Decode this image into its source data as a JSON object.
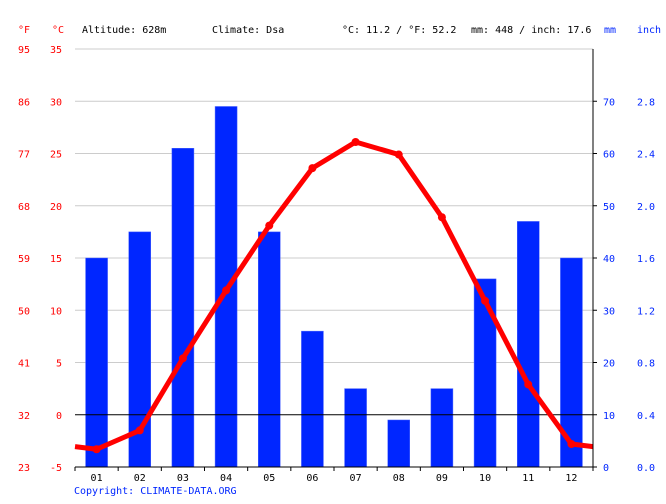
{
  "header": {
    "unit_f": "°F",
    "unit_c": "°C",
    "altitude": "Altitude: 628m",
    "climate": "Climate: Dsa",
    "temp_avg": "°C: 11.2 / °F: 52.2",
    "precip_total": "mm: 448 / inch: 17.6",
    "unit_mm": "mm",
    "unit_inch": "inch"
  },
  "copyright": "Copyright: CLIMATE-DATA.ORG",
  "chart_data": {
    "type": "bar+line",
    "categories": [
      "01",
      "02",
      "03",
      "04",
      "05",
      "06",
      "07",
      "08",
      "09",
      "10",
      "11",
      "12"
    ],
    "series": [
      {
        "kind": "bar",
        "axis": "precipitation",
        "unit": "mm",
        "values": [
          40,
          45,
          61,
          69,
          45,
          26,
          15,
          9,
          15,
          36,
          47,
          40
        ],
        "color": "#0026ff"
      },
      {
        "kind": "line",
        "axis": "temperature",
        "unit": "°C",
        "values": [
          -3.3,
          -1.5,
          5.4,
          11.9,
          18.1,
          23.6,
          26.1,
          24.9,
          18.9,
          10.9,
          2.9,
          -2.8
        ],
        "color": "#ff0000"
      }
    ],
    "axes": {
      "celsius": {
        "range": [
          -5,
          35
        ],
        "ticks": [
          "35",
          "30",
          "25",
          "20",
          "15",
          "10",
          "5",
          "0",
          "-5"
        ]
      },
      "fahrenheit": {
        "ticks": [
          "95",
          "86",
          "77",
          "68",
          "59",
          "50",
          "41",
          "32",
          "23"
        ]
      },
      "mm": {
        "range": [
          0,
          80
        ],
        "ticks": [
          "70",
          "60",
          "50",
          "40",
          "30",
          "20",
          "10",
          "0"
        ]
      },
      "inch": {
        "ticks": [
          "2.8",
          "2.4",
          "2.0",
          "1.6",
          "1.2",
          "0.8",
          "0.4",
          "0.0"
        ]
      }
    },
    "grid": true,
    "colors": {
      "temperature": "#ff0000",
      "precipitation": "#0026ff",
      "grid": "#cccccc"
    }
  }
}
